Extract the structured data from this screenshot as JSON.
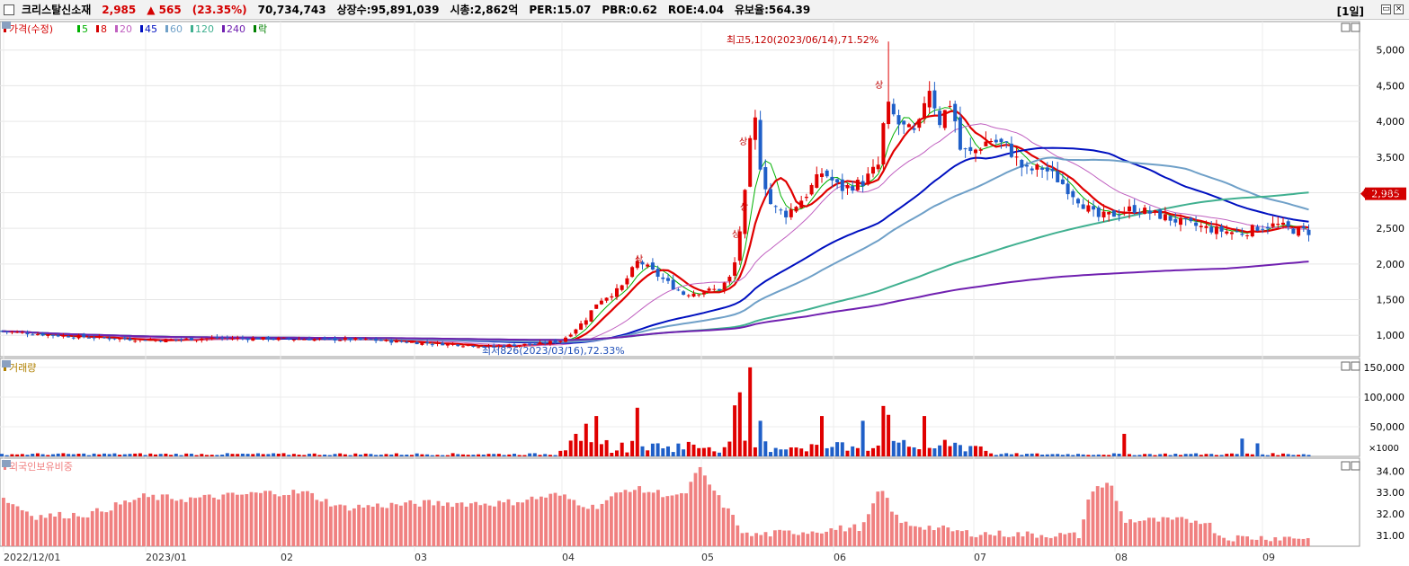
{
  "header": {
    "stock_name": "크리스탈신소재",
    "price": "2,985",
    "change": "▲ 565",
    "change_pct": "(23.35%)",
    "volume": "70,734,743",
    "listed_shares": "상장수:95,891,039",
    "market_cap": "시총:2,862억",
    "per": "PER:15.07",
    "pbr": "PBR:0.62",
    "roe": "ROE:4.04",
    "float_ratio": "유보율:564.39",
    "period": "[1일]"
  },
  "legend": {
    "price_label": "가격(수정)",
    "ma_items": [
      {
        "label": "5",
        "color": "#00b000"
      },
      {
        "label": "8",
        "color": "#d40000"
      },
      {
        "label": "20",
        "color": "#c060c0"
      },
      {
        "label": "45",
        "color": "#0010c0"
      },
      {
        "label": "60",
        "color": "#6fa0c8"
      },
      {
        "label": "120",
        "color": "#40b090"
      },
      {
        "label": "240",
        "color": "#7020b0"
      },
      {
        "label": "락",
        "color": "#008000"
      }
    ],
    "volume_label": "거래량",
    "foreign_label": "외국인보유비중"
  },
  "annotations": {
    "high": "최고5,120(2023/06/14),71.52%",
    "low": "최저826(2023/03/16),72.33%",
    "upper_limit_mark": "상",
    "current_price": "2,985",
    "current_pct": "23.35%",
    "volume_unit": "×1000"
  },
  "colors": {
    "up": "#e00000",
    "down": "#1f5fc8",
    "foreign_bar": "#f08080"
  },
  "chart_data": [
    {
      "type": "candlestick",
      "title": "",
      "y_ticks": [
        "1,000",
        "1,500",
        "2,000",
        "2,500",
        "3,000",
        "3,500",
        "4,000",
        "4,500",
        "5,000"
      ],
      "ylim": [
        700,
        5400
      ],
      "x_labels": [
        "2022/12/01",
        "2023/01",
        "02",
        "03",
        "04",
        "05",
        "06",
        "07",
        "08",
        "09"
      ],
      "key_points": [
        {
          "date": "2023/03/16",
          "low": 826
        },
        {
          "date": "2023/06/14",
          "high": 5120
        },
        {
          "date": "last",
          "close": 2985,
          "change_pct": 23.35
        }
      ],
      "close_approx": [
        {
          "x": "2022/12",
          "close": 1000
        },
        {
          "x": "2023/01",
          "close": 960
        },
        {
          "x": "2023/02",
          "close": 960
        },
        {
          "x": "2023/03",
          "close": 880
        },
        {
          "x": "2023/04 mid",
          "close": 2050
        },
        {
          "x": "2023/05 start",
          "close": 1650
        },
        {
          "x": "2023/05 mid",
          "close": 4200
        },
        {
          "x": "2023/06 start",
          "close": 3100
        },
        {
          "x": "2023/06 mid",
          "close": 4300
        },
        {
          "x": "2023/07 start",
          "close": 3900
        },
        {
          "x": "2023/07 end",
          "close": 3200
        },
        {
          "x": "2023/08 start",
          "close": 2650
        },
        {
          "x": "2023/09 mid",
          "close": 2420
        },
        {
          "x": "last",
          "close": 2985
        }
      ]
    },
    {
      "type": "bar",
      "title": "",
      "y_ticks": [
        "50,000",
        "100,000",
        "150,000"
      ],
      "ylim": [
        0,
        165000
      ],
      "unit": "×1000"
    },
    {
      "type": "bar",
      "title": "",
      "y_ticks": [
        "31.00",
        "32.00",
        "33.00",
        "34.00"
      ],
      "ylim": [
        30.5,
        34.6
      ]
    }
  ]
}
